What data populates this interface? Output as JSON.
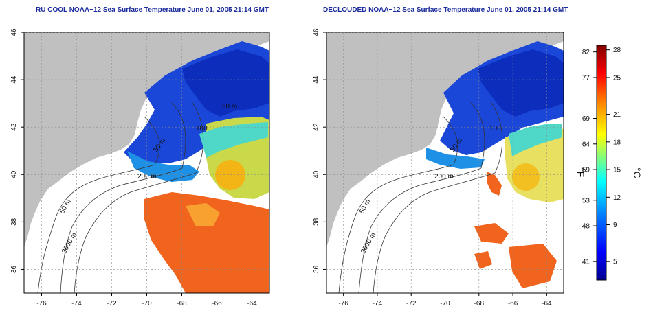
{
  "titles": {
    "left": "RU COOL NOAA−12 Sea Surface Temperature June 01, 2005 21:14 GMT",
    "right": "DECLOUDED NOAA−12 Sea Surface Temperature June 01, 2005 21:14 GMT"
  },
  "map": {
    "lon_range": [
      -77,
      -63
    ],
    "lat_range": [
      35,
      46
    ],
    "x_ticks": [
      "-76",
      "-74",
      "-72",
      "-70",
      "-68",
      "-66",
      "-64"
    ],
    "y_ticks": [
      "36",
      "38",
      "40",
      "42",
      "44",
      "46"
    ],
    "grid": "dotted",
    "land_color": "#c0c0c0",
    "no_data_color": "#ffffff"
  },
  "contour_labels": {
    "left": [
      "50 m",
      "200 m",
      "50 m",
      "2000 m",
      "100",
      "50 m"
    ],
    "right": [
      "50 m",
      "200 m",
      "50 m",
      "2000 m",
      "100"
    ]
  },
  "colorbar": {
    "fahrenheit_ticks": [
      "82",
      "77",
      "69",
      "64",
      "59",
      "53",
      "48",
      "41"
    ],
    "celsius_ticks": [
      "28",
      "25",
      "21",
      "18",
      "15",
      "12",
      "9",
      "5"
    ],
    "unit_f": "°F",
    "unit_c": "°C",
    "range_c": [
      3,
      28.5
    ],
    "colors": [
      "#00008f",
      "#0000ff",
      "#0080ff",
      "#00ffff",
      "#80ff80",
      "#ffff00",
      "#ff8000",
      "#ff0000",
      "#800000"
    ]
  }
}
